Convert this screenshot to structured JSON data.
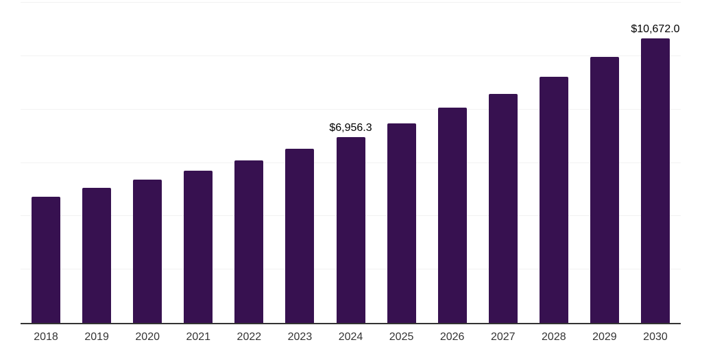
{
  "chart_data": {
    "type": "bar",
    "title": "",
    "xlabel": "",
    "ylabel": "",
    "categories": [
      "2018",
      "2019",
      "2020",
      "2021",
      "2022",
      "2023",
      "2024",
      "2025",
      "2026",
      "2027",
      "2028",
      "2029",
      "2030"
    ],
    "values": [
      4730,
      5070,
      5370,
      5710,
      6090,
      6520,
      6956.3,
      7490,
      8060,
      8580,
      9230,
      9970,
      10672
    ],
    "data_labels": [
      {
        "category": "2024",
        "text": "$6,956.3"
      },
      {
        "category": "2030",
        "text": "$10,672.0"
      }
    ],
    "ylim": [
      0,
      12000
    ],
    "gridline_step": 2000,
    "grid": true,
    "legend": false,
    "y_axis_tick_labels_visible": false,
    "colors": {
      "bar": "#371150",
      "axis_line": "#333333",
      "gridline": "#f2f2f2",
      "data_label_text": "#000000",
      "x_tick_text": "#333333",
      "background": "#ffffff"
    }
  }
}
